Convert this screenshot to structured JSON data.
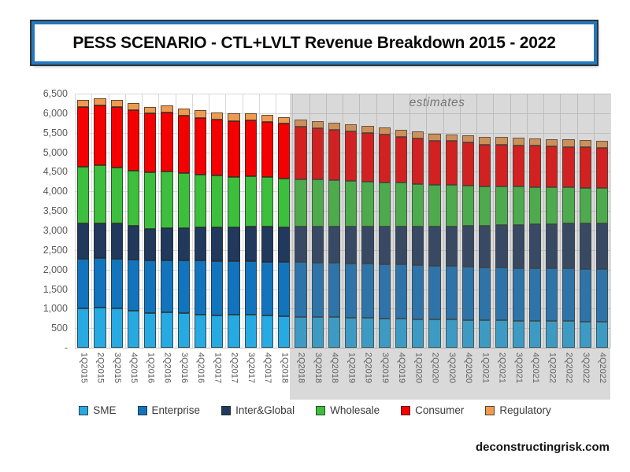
{
  "title": "PESS SCENARIO - CTL+LVLT Revenue Breakdown 2015 - 2022",
  "watermark": "deconstructingrisk.com",
  "estimates_label": "estimates",
  "colors": {
    "accent_border": "#2577BE",
    "grid": "#D9D9D9",
    "axis_line": "#BFBFBF",
    "axis_text": "#595959",
    "estimates_text": "#767676",
    "estimates_shade": "#D9D9D9"
  },
  "chart_data": {
    "type": "bar",
    "stacked": true,
    "title": "PESS SCENARIO - CTL+LVLT Revenue Breakdown 2015 - 2022",
    "xlabel": "",
    "ylabel": "",
    "grid": true,
    "legend_position": "bottom",
    "ylim": [
      0,
      6500
    ],
    "ytick_step": 500,
    "ytick_labels": [
      "-",
      "500",
      "1,000",
      "1,500",
      "2,000",
      "2,500",
      "3,000",
      "3,500",
      "4,000",
      "4,500",
      "5,000",
      "5,500",
      "6,000",
      "6,500"
    ],
    "estimates_start_category": "2Q2018",
    "categories": [
      "1Q2015",
      "2Q2015",
      "3Q2015",
      "4Q2015",
      "1Q2016",
      "2Q2016",
      "3Q2016",
      "4Q2016",
      "1Q2017",
      "2Q2017",
      "3Q2017",
      "4Q2017",
      "1Q2018",
      "2Q2018",
      "3Q2018",
      "4Q2018",
      "1Q2019",
      "2Q2019",
      "3Q2019",
      "4Q2019",
      "1Q2020",
      "2Q2020",
      "3Q2020",
      "4Q2020",
      "1Q2021",
      "2Q2021",
      "3Q2021",
      "4Q2021",
      "1Q2022",
      "2Q2022",
      "3Q2022",
      "4Q2022"
    ],
    "series": [
      {
        "name": "SME",
        "color": "#27AAE1",
        "values": [
          1000,
          1020,
          1010,
          950,
          890,
          900,
          880,
          850,
          830,
          840,
          850,
          820,
          810,
          790,
          780,
          775,
          770,
          760,
          750,
          740,
          730,
          720,
          715,
          710,
          700,
          695,
          690,
          685,
          680,
          675,
          670,
          670
        ]
      },
      {
        "name": "Enterprise",
        "color": "#1274BC",
        "values": [
          1280,
          1270,
          1270,
          1310,
          1350,
          1340,
          1350,
          1380,
          1380,
          1370,
          1370,
          1380,
          1390,
          1400,
          1400,
          1395,
          1390,
          1390,
          1390,
          1390,
          1380,
          1380,
          1375,
          1370,
          1360,
          1355,
          1350,
          1355,
          1350,
          1355,
          1350,
          1350
        ]
      },
      {
        "name": "Inter&Global",
        "color": "#20395C",
        "values": [
          900,
          890,
          890,
          860,
          800,
          820,
          830,
          850,
          870,
          870,
          870,
          890,
          880,
          900,
          910,
          920,
          930,
          940,
          950,
          960,
          990,
          1000,
          1010,
          1030,
          1060,
          1080,
          1100,
          1110,
          1130,
          1140,
          1160,
          1160
        ]
      },
      {
        "name": "Wholesale",
        "color": "#3DBE3D",
        "values": [
          1440,
          1480,
          1430,
          1400,
          1440,
          1440,
          1400,
          1340,
          1320,
          1280,
          1290,
          1270,
          1240,
          1210,
          1210,
          1190,
          1170,
          1150,
          1130,
          1130,
          1080,
          1060,
          1060,
          1030,
          1000,
          990,
          980,
          950,
          940,
          930,
          900,
          900
        ]
      },
      {
        "name": "Consumer",
        "color": "#F50000",
        "values": [
          1540,
          1540,
          1560,
          1560,
          1520,
          1520,
          1480,
          1460,
          1440,
          1440,
          1440,
          1420,
          1420,
          1360,
          1320,
          1300,
          1280,
          1260,
          1240,
          1180,
          1180,
          1140,
          1140,
          1120,
          1080,
          1080,
          1060,
          1080,
          1060,
          1040,
          1060,
          1040
        ]
      },
      {
        "name": "Regulatory",
        "color": "#EE9A4F",
        "values": [
          170,
          170,
          180,
          170,
          160,
          180,
          180,
          200,
          180,
          200,
          180,
          180,
          160,
          180,
          170,
          170,
          170,
          170,
          170,
          170,
          170,
          180,
          160,
          170,
          200,
          190,
          200,
          180,
          180,
          190,
          170,
          180
        ]
      }
    ]
  }
}
